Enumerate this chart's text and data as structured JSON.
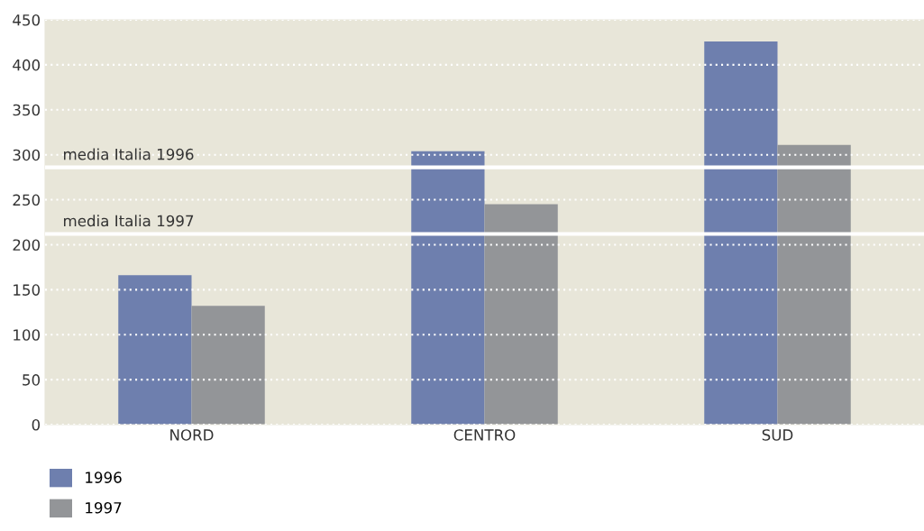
{
  "chart_data": {
    "type": "bar",
    "categories": [
      "NORD",
      "CENTRO",
      "SUD"
    ],
    "series": [
      {
        "name": "1996",
        "color": "#6e7fae",
        "values": [
          166,
          304,
          426
        ]
      },
      {
        "name": "1997",
        "color": "#939598",
        "values": [
          132,
          245,
          311
        ]
      }
    ],
    "ylim": [
      0,
      450
    ],
    "yticks": [
      0,
      50,
      100,
      150,
      200,
      250,
      300,
      350,
      400,
      450
    ],
    "grid": "y",
    "legend": "bottom left",
    "ref_lines": [
      {
        "axis": "y",
        "value": 286,
        "label": "media Italia 1996",
        "color": "#ffffff"
      },
      {
        "axis": "y",
        "value": 212,
        "label": "media Italia 1997",
        "color": "#ffffff"
      }
    ]
  }
}
